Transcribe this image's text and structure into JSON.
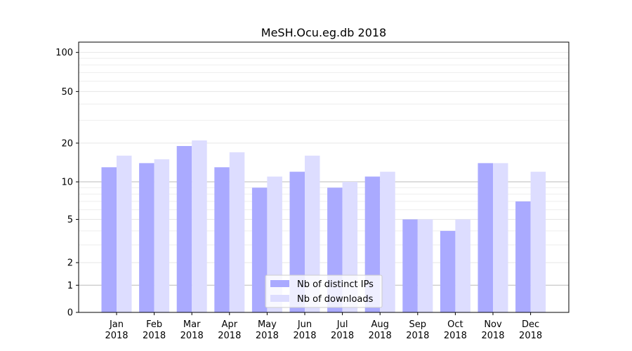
{
  "chart_data": {
    "type": "bar",
    "title": "MeSH.Ocu.eg.db 2018",
    "xlabel": "",
    "ylabel": "",
    "y_scale": "symlog",
    "ylim": [
      0,
      120
    ],
    "y_ticks": [
      0,
      1,
      2,
      5,
      10,
      20,
      50,
      100
    ],
    "categories": [
      "Jan\n2018",
      "Feb\n2018",
      "Mar\n2018",
      "Apr\n2018",
      "May\n2018",
      "Jun\n2018",
      "Jul\n2018",
      "Aug\n2018",
      "Sep\n2018",
      "Oct\n2018",
      "Nov\n2018",
      "Dec\n2018"
    ],
    "series": [
      {
        "name": "Nb of distinct IPs",
        "color": "#aaaaff",
        "values": [
          13,
          14,
          19,
          13,
          9,
          12,
          9,
          11,
          5,
          4,
          14,
          7
        ]
      },
      {
        "name": "Nb of downloads",
        "color": "#ddddff",
        "values": [
          16,
          15,
          21,
          17,
          11,
          16,
          10,
          12,
          5,
          5,
          14,
          12
        ]
      }
    ],
    "grid": true,
    "legend_position": "bottom-center"
  }
}
